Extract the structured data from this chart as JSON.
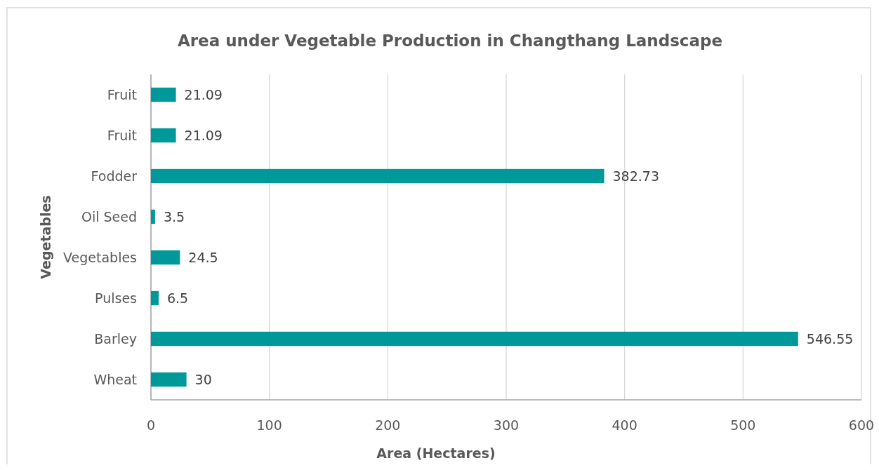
{
  "chart_data": {
    "type": "bar",
    "orientation": "horizontal",
    "title": "Area under Vegetable Production in Changthang Landscape",
    "xlabel": "Area (Hectares)",
    "ylabel": "Vegetables",
    "categories": [
      "Fruit",
      "Fruit",
      "Fodder",
      "Oil Seed",
      "Vegetables",
      "Pulses",
      "Barley",
      "Wheat"
    ],
    "values": [
      21.09,
      21.09,
      382.73,
      3.5,
      24.5,
      6.5,
      546.55,
      30
    ],
    "color": "#009999",
    "xlim": [
      0,
      600
    ],
    "xticks": [
      0,
      100,
      200,
      300,
      400,
      500,
      600
    ],
    "grid": "x",
    "data_labels": true
  }
}
